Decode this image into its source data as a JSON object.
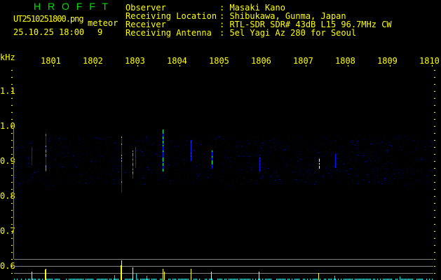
{
  "header": {
    "title": "H R O F F T",
    "filename": "UT2510251800.png",
    "mode": "meteor",
    "datetime": "25.10.25 18:00",
    "count": "9",
    "fields": [
      {
        "label": "Observer",
        "value": ": Masaki Kano"
      },
      {
        "label": "Receiving Location",
        "value": ": Shibukawa, Gunma, Japan"
      },
      {
        "label": "Receiver",
        "value": ": RTL-SDR SDR# 43dB L15 96.7MHz CW"
      },
      {
        "label": "Receiving Antenna",
        "value": ": 5el Yagi Az 280 for Seoul"
      }
    ]
  },
  "axes": {
    "y_unit": "kHz",
    "x_ticks": [
      "1801",
      "1802",
      "1803",
      "1804",
      "1805",
      "1806",
      "1807",
      "1808",
      "1809",
      "1810"
    ],
    "y_ticks": [
      "1.1",
      "1.0",
      "0.9",
      "0.8",
      "0.7",
      "0.6"
    ]
  },
  "colors": {
    "text": "#ffff00",
    "title": "#00e000",
    "grid": "#808080",
    "bar_primary": "#ffff00",
    "bar_secondary": "#00e0e0"
  }
}
